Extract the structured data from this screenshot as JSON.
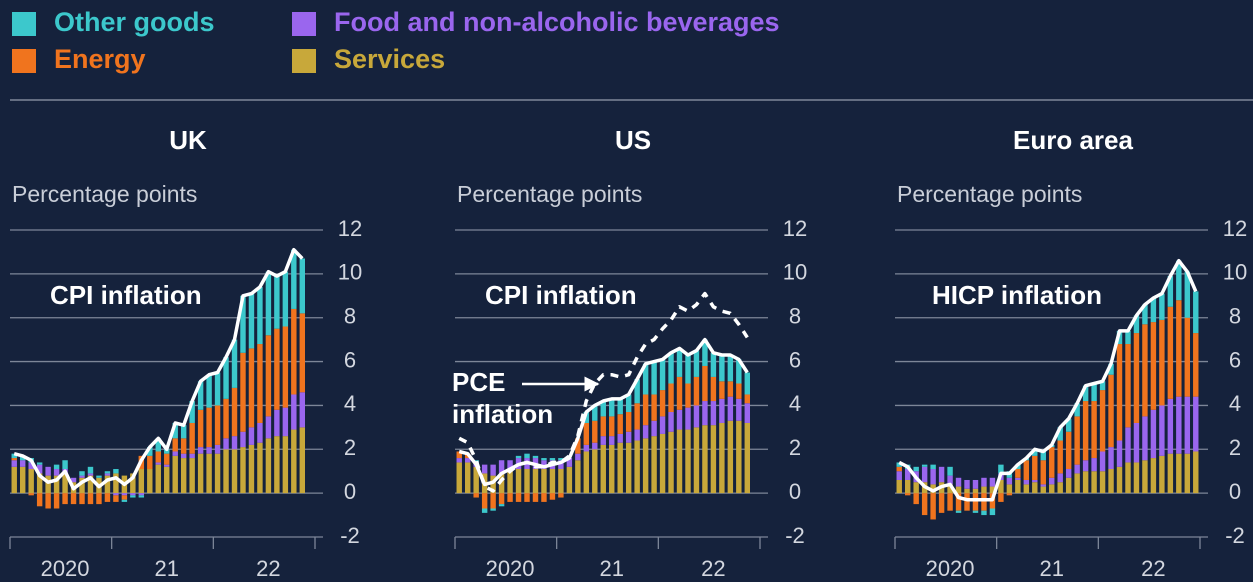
{
  "legend": [
    {
      "name": "Other goods",
      "color": "#3cc8cc"
    },
    {
      "name": "Energy",
      "color": "#f0741e"
    },
    {
      "name": "Food and non-alcoholic beverages",
      "color": "#9a66ee"
    },
    {
      "name": "Services",
      "color": "#c8a83a"
    }
  ],
  "chart_data": [
    {
      "type": "bar",
      "title": "UK",
      "y_label": "Percentage points",
      "categories": [
        null,
        null,
        null,
        null,
        null,
        null,
        "2020",
        null,
        null,
        null,
        null,
        null,
        null,
        null,
        null,
        null,
        null,
        null,
        "21",
        null,
        null,
        null,
        null,
        null,
        null,
        null,
        null,
        null,
        null,
        null,
        "22",
        null,
        null,
        null,
        null
      ],
      "series": [
        {
          "values": [
            0.2,
            0.2,
            0.2,
            0.1,
            0.0,
            0.2,
            0.4,
            0.0,
            0.2,
            0.3,
            0.1,
            0.1,
            0.2,
            -0.1,
            -0.1,
            -0.1,
            0.4,
            0.6,
            0.2,
            0.7,
            0.6,
            1.0,
            1.3,
            1.5,
            1.5,
            1.9,
            2.2,
            2.6,
            2.5,
            2.6,
            2.9,
            2.4,
            2.5,
            2.7,
            2.5
          ]
        },
        {
          "values": [
            0.1,
            0.0,
            -0.1,
            -0.6,
            -0.7,
            -0.7,
            -0.5,
            -0.5,
            -0.5,
            -0.5,
            -0.5,
            -0.4,
            -0.3,
            -0.2,
            0.0,
            0.6,
            0.6,
            0.5,
            0.5,
            0.6,
            0.7,
            1.4,
            1.7,
            1.8,
            1.8,
            1.8,
            2.2,
            3.6,
            3.6,
            3.6,
            3.7,
            3.7,
            3.7,
            3.9,
            3.6
          ]
        },
        {
          "values": [
            0.3,
            0.3,
            0.3,
            0.4,
            0.4,
            0.3,
            0.2,
            0.2,
            0.1,
            0.1,
            0.0,
            0.1,
            -0.1,
            -0.1,
            -0.1,
            -0.1,
            0.0,
            0.1,
            0.1,
            0.2,
            0.2,
            0.2,
            0.3,
            0.3,
            0.4,
            0.5,
            0.6,
            0.7,
            0.8,
            0.9,
            1.0,
            1.2,
            1.3,
            1.6,
            1.6
          ]
        },
        {
          "values": [
            1.2,
            1.2,
            1.1,
            0.9,
            0.8,
            0.8,
            0.9,
            0.5,
            0.7,
            0.8,
            0.7,
            0.8,
            0.9,
            0.8,
            0.9,
            1.1,
            1.1,
            1.3,
            1.2,
            1.7,
            1.6,
            1.6,
            1.8,
            1.8,
            1.8,
            2.0,
            2.0,
            2.1,
            2.2,
            2.3,
            2.5,
            2.6,
            2.6,
            2.9,
            3.0
          ]
        }
      ],
      "lines": [
        {
          "name": "CPI inflation",
          "color": "#ffffff",
          "dash": false,
          "values": [
            1.8,
            1.7,
            1.5,
            0.8,
            0.5,
            0.6,
            1.0,
            0.2,
            0.5,
            0.7,
            0.3,
            0.6,
            0.7,
            0.4,
            0.7,
            1.5,
            2.1,
            2.5,
            2.0,
            3.2,
            3.1,
            4.2,
            5.1,
            5.4,
            5.5,
            6.2,
            7.0,
            9.0,
            9.1,
            9.4,
            10.1,
            9.9,
            10.1,
            11.1,
            10.7
          ]
        }
      ],
      "ylim": [
        -2,
        12
      ],
      "yticks": [
        -2,
        0,
        2,
        4,
        6,
        8,
        10,
        12
      ],
      "grid": true
    },
    {
      "type": "bar",
      "title": "US",
      "y_label": "Percentage points",
      "categories": [
        null,
        null,
        null,
        null,
        null,
        null,
        "2020",
        null,
        null,
        null,
        null,
        null,
        null,
        null,
        null,
        null,
        null,
        null,
        "21",
        null,
        null,
        null,
        null,
        null,
        null,
        null,
        null,
        null,
        null,
        null,
        "22",
        null,
        null,
        null,
        null
      ],
      "series": [
        {
          "values": [
            0.0,
            0.0,
            0.1,
            -0.2,
            -0.1,
            -0.1,
            0.0,
            0.1,
            0.2,
            0.1,
            0.1,
            0.1,
            0.1,
            0.0,
            0.0,
            0.5,
            0.7,
            0.7,
            0.8,
            0.7,
            0.8,
            1.1,
            1.4,
            1.5,
            1.4,
            1.4,
            1.3,
            1.3,
            1.2,
            1.2,
            1.1,
            1.2,
            1.2,
            1.1,
            1.0
          ]
        },
        {
          "values": [
            0.3,
            0.2,
            -0.2,
            -0.7,
            -0.7,
            -0.5,
            -0.4,
            -0.4,
            -0.4,
            -0.4,
            -0.4,
            -0.3,
            -0.2,
            0.0,
            0.7,
            1.0,
            1.0,
            0.9,
            0.9,
            0.9,
            0.9,
            1.2,
            1.4,
            1.2,
            1.2,
            1.3,
            1.5,
            1.1,
            1.3,
            1.6,
            1.1,
            0.8,
            0.7,
            0.7,
            0.4
          ]
        },
        {
          "values": [
            0.2,
            0.2,
            0.2,
            0.4,
            0.5,
            0.6,
            0.5,
            0.5,
            0.5,
            0.5,
            0.4,
            0.4,
            0.4,
            0.4,
            0.3,
            0.3,
            0.3,
            0.4,
            0.4,
            0.4,
            0.5,
            0.5,
            0.6,
            0.7,
            0.8,
            0.9,
            0.9,
            1.0,
            1.0,
            1.1,
            1.1,
            1.1,
            1.1,
            1.0,
            0.9
          ]
        },
        {
          "values": [
            1.4,
            1.4,
            1.2,
            0.9,
            0.8,
            0.9,
            1.0,
            1.1,
            1.1,
            1.1,
            1.1,
            1.1,
            1.1,
            1.2,
            1.5,
            1.9,
            2.0,
            2.2,
            2.2,
            2.3,
            2.3,
            2.4,
            2.5,
            2.6,
            2.7,
            2.8,
            2.9,
            2.9,
            3.0,
            3.1,
            3.1,
            3.2,
            3.3,
            3.3,
            3.2
          ]
        }
      ],
      "lines": [
        {
          "name": "PCE inflation",
          "color": "#ffffff",
          "dash": false,
          "values": [
            1.9,
            1.8,
            1.3,
            0.4,
            0.5,
            0.9,
            1.1,
            1.3,
            1.4,
            1.3,
            1.2,
            1.3,
            1.4,
            1.6,
            2.5,
            3.7,
            4.0,
            4.2,
            4.3,
            4.3,
            4.5,
            5.2,
            5.9,
            6.0,
            6.1,
            6.4,
            6.6,
            6.3,
            6.5,
            7.0,
            6.4,
            6.3,
            6.3,
            6.1,
            5.5
          ]
        },
        {
          "name": "CPI inflation",
          "color": "#ffffff",
          "dash": true,
          "values": [
            2.5,
            2.3,
            1.5,
            0.3,
            0.1,
            0.6,
            1.0,
            1.3,
            1.4,
            1.2,
            1.2,
            1.4,
            1.4,
            1.7,
            2.6,
            4.2,
            5.0,
            5.4,
            5.4,
            5.3,
            5.4,
            6.2,
            6.8,
            7.0,
            7.5,
            7.9,
            8.5,
            8.3,
            8.6,
            9.1,
            8.5,
            8.3,
            8.2,
            7.7,
            7.1
          ]
        }
      ],
      "ylim": [
        -2,
        12
      ],
      "yticks": [
        -2,
        0,
        2,
        4,
        6,
        8,
        10,
        12
      ],
      "grid": true
    },
    {
      "type": "bar",
      "title": "Euro area",
      "y_label": "Percentage points",
      "categories": [
        null,
        null,
        null,
        null,
        null,
        null,
        "2020",
        null,
        null,
        null,
        null,
        null,
        null,
        null,
        null,
        null,
        null,
        null,
        "21",
        null,
        null,
        null,
        null,
        null,
        null,
        null,
        null,
        null,
        null,
        null,
        "22",
        null,
        null,
        null,
        null,
        null
      ],
      "series": [
        {
          "values": [
            0.2,
            0.2,
            0.2,
            0.1,
            0.2,
            0.0,
            0.4,
            -0.1,
            0.0,
            -0.1,
            -0.2,
            -0.3,
            0.4,
            0.3,
            0.2,
            0.1,
            0.3,
            0.4,
            0.1,
            0.6,
            0.6,
            0.6,
            0.7,
            0.8,
            0.4,
            0.5,
            0.6,
            0.6,
            0.8,
            0.9,
            1.1,
            1.2,
            1.4,
            1.8,
            2.1,
            1.9
          ]
        },
        {
          "values": [
            0.2,
            -0.1,
            -0.5,
            -1.0,
            -1.2,
            -0.9,
            -0.8,
            -0.8,
            -0.8,
            -0.8,
            -0.8,
            -0.7,
            -0.4,
            -0.1,
            0.4,
            0.9,
            1.1,
            1.1,
            1.4,
            1.5,
            1.7,
            2.2,
            2.7,
            2.6,
            2.8,
            3.3,
            4.4,
            3.8,
            4.1,
            4.2,
            4.0,
            3.9,
            4.2,
            4.4,
            3.6,
            2.9
          ]
        },
        {
          "values": [
            0.4,
            0.5,
            0.5,
            0.7,
            0.7,
            0.7,
            0.4,
            0.4,
            0.4,
            0.4,
            0.4,
            0.4,
            0.3,
            0.3,
            0.1,
            0.2,
            0.1,
            0.1,
            0.3,
            0.4,
            0.4,
            0.4,
            0.5,
            0.6,
            0.9,
            1.0,
            1.2,
            1.6,
            1.8,
            2.0,
            2.2,
            2.3,
            2.5,
            2.6,
            2.6,
            2.5
          ]
        },
        {
          "values": [
            0.6,
            0.6,
            0.5,
            0.5,
            0.4,
            0.5,
            0.4,
            0.3,
            0.2,
            0.2,
            0.3,
            0.3,
            0.6,
            0.4,
            0.6,
            0.4,
            0.5,
            0.3,
            0.4,
            0.5,
            0.7,
            0.9,
            1.0,
            1.0,
            1.0,
            1.1,
            1.2,
            1.4,
            1.4,
            1.5,
            1.6,
            1.7,
            1.8,
            1.8,
            1.8,
            1.9
          ]
        }
      ],
      "lines": [
        {
          "name": "HICP inflation",
          "color": "#ffffff",
          "dash": false,
          "values": [
            1.4,
            1.2,
            0.7,
            0.3,
            0.1,
            0.3,
            0.4,
            -0.2,
            -0.3,
            -0.3,
            -0.3,
            -0.3,
            0.9,
            0.9,
            1.3,
            1.6,
            2.0,
            1.9,
            2.2,
            3.0,
            3.4,
            4.1,
            4.9,
            5.0,
            5.1,
            5.9,
            7.4,
            7.4,
            8.1,
            8.6,
            8.9,
            9.1,
            9.9,
            10.6,
            10.1,
            9.2
          ]
        }
      ],
      "ylim": [
        -2,
        12
      ],
      "yticks": [
        -2,
        0,
        2,
        4,
        6,
        8,
        10,
        12
      ],
      "grid": true
    }
  ]
}
